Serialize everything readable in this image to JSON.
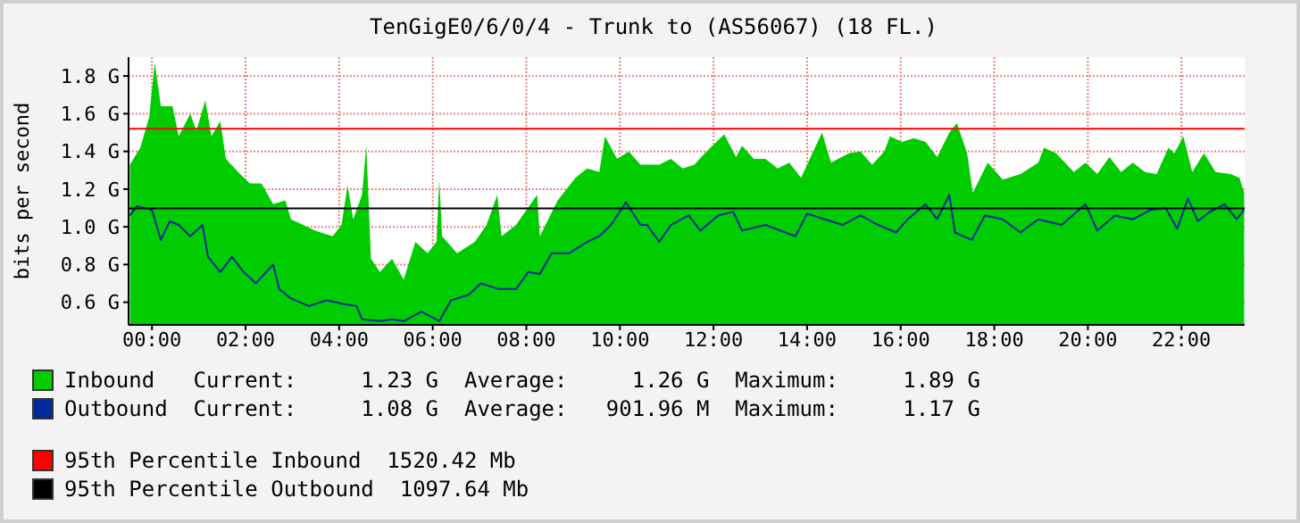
{
  "chart_data": {
    "type": "area",
    "title": "TenGigE0/6/0/4 - Trunk to (AS56067) (18 FL.)",
    "ylabel": "bits per second",
    "xlim": [
      -0.5,
      23.35
    ],
    "ylim": [
      0.48,
      1.9
    ],
    "xticks": [
      {
        "value": 0,
        "label": "00:00"
      },
      {
        "value": 2,
        "label": "02:00"
      },
      {
        "value": 4,
        "label": "04:00"
      },
      {
        "value": 6,
        "label": "06:00"
      },
      {
        "value": 8,
        "label": "08:00"
      },
      {
        "value": 10,
        "label": "10:00"
      },
      {
        "value": 12,
        "label": "12:00"
      },
      {
        "value": 14,
        "label": "14:00"
      },
      {
        "value": 16,
        "label": "16:00"
      },
      {
        "value": 18,
        "label": "18:00"
      },
      {
        "value": 20,
        "label": "20:00"
      },
      {
        "value": 22,
        "label": "22:00"
      }
    ],
    "yticks": [
      {
        "value": 0.6,
        "label": "0.6 G"
      },
      {
        "value": 0.8,
        "label": "0.8 G"
      },
      {
        "value": 1.0,
        "label": "1.0 G"
      },
      {
        "value": 1.2,
        "label": "1.2 G"
      },
      {
        "value": 1.4,
        "label": "1.4 G"
      },
      {
        "value": 1.6,
        "label": "1.6 G"
      },
      {
        "value": 1.8,
        "label": "1.8 G"
      }
    ],
    "grid": true,
    "legend": "bottom",
    "series": [
      {
        "name": "Inbound",
        "color": "#00cc00",
        "x": [
          -0.47,
          -0.25,
          -0.06,
          0.06,
          0.19,
          0.44,
          0.57,
          0.82,
          0.95,
          1.14,
          1.27,
          1.46,
          1.58,
          1.84,
          2.09,
          2.34,
          2.59,
          2.85,
          2.97,
          3.23,
          3.48,
          3.86,
          4.05,
          4.18,
          4.3,
          4.49,
          4.58,
          4.68,
          4.87,
          5.13,
          5.38,
          5.63,
          5.89,
          6.08,
          6.14,
          6.2,
          6.52,
          6.9,
          7.15,
          7.38,
          7.47,
          7.78,
          8.23,
          8.29,
          8.67,
          9.05,
          9.3,
          9.56,
          9.68,
          9.94,
          10.19,
          10.44,
          10.58,
          10.84,
          11.09,
          11.34,
          11.59,
          11.85,
          12.23,
          12.48,
          12.61,
          12.86,
          13.11,
          13.37,
          13.62,
          13.87,
          14.13,
          14.32,
          14.51,
          14.89,
          15.14,
          15.39,
          15.65,
          15.77,
          16.03,
          16.28,
          16.53,
          16.78,
          17.04,
          17.2,
          17.42,
          17.54,
          17.86,
          18.18,
          18.56,
          18.94,
          19.06,
          19.32,
          19.7,
          19.95,
          20.2,
          20.46,
          20.71,
          20.96,
          21.22,
          21.47,
          21.72,
          21.85,
          22.04,
          22.23,
          22.48,
          22.73,
          23.05,
          23.24,
          23.34
        ],
        "values": [
          1.33,
          1.42,
          1.58,
          1.87,
          1.64,
          1.64,
          1.48,
          1.6,
          1.51,
          1.67,
          1.48,
          1.56,
          1.36,
          1.29,
          1.23,
          1.23,
          1.12,
          1.14,
          1.04,
          1.01,
          0.98,
          0.95,
          1.01,
          1.22,
          1.04,
          1.17,
          1.43,
          0.83,
          0.76,
          0.83,
          0.72,
          0.92,
          0.86,
          0.92,
          1.25,
          0.95,
          0.86,
          0.92,
          1.01,
          1.17,
          0.95,
          1.01,
          1.17,
          0.95,
          1.14,
          1.26,
          1.31,
          1.29,
          1.48,
          1.36,
          1.4,
          1.33,
          1.33,
          1.33,
          1.36,
          1.31,
          1.33,
          1.4,
          1.49,
          1.37,
          1.43,
          1.36,
          1.36,
          1.31,
          1.34,
          1.26,
          1.4,
          1.5,
          1.34,
          1.39,
          1.4,
          1.33,
          1.4,
          1.48,
          1.45,
          1.47,
          1.45,
          1.37,
          1.5,
          1.55,
          1.39,
          1.18,
          1.34,
          1.25,
          1.28,
          1.34,
          1.42,
          1.39,
          1.29,
          1.34,
          1.28,
          1.37,
          1.29,
          1.34,
          1.29,
          1.28,
          1.42,
          1.39,
          1.48,
          1.29,
          1.39,
          1.29,
          1.28,
          1.26,
          1.18
        ]
      },
      {
        "name": "Outbound",
        "type": "line",
        "color": "#002a97",
        "x": [
          -0.47,
          -0.32,
          0,
          0.19,
          0.38,
          0.57,
          0.82,
          1.08,
          1.2,
          1.46,
          1.71,
          1.96,
          2.22,
          2.59,
          2.72,
          2.97,
          3.35,
          3.73,
          4.11,
          4.37,
          4.49,
          4.87,
          5.13,
          5.38,
          5.76,
          6.14,
          6.39,
          6.77,
          7.03,
          7.41,
          7.78,
          8.04,
          8.29,
          8.54,
          8.92,
          9.3,
          9.56,
          9.81,
          10.13,
          10.44,
          10.58,
          10.84,
          11.09,
          11.47,
          11.72,
          12.1,
          12.42,
          12.61,
          13.11,
          13.75,
          14.0,
          14.38,
          14.76,
          15.14,
          15.52,
          15.9,
          16.15,
          16.53,
          16.78,
          17.04,
          17.16,
          17.52,
          17.8,
          18.18,
          18.56,
          18.94,
          19.44,
          19.95,
          20.2,
          20.58,
          20.96,
          21.34,
          21.66,
          21.91,
          22.14,
          22.35,
          22.61,
          22.92,
          23.18,
          23.34
        ],
        "values": [
          1.06,
          1.11,
          1.09,
          0.93,
          1.03,
          1.01,
          0.95,
          1.01,
          0.84,
          0.76,
          0.84,
          0.76,
          0.7,
          0.8,
          0.67,
          0.62,
          0.58,
          0.61,
          0.59,
          0.58,
          0.51,
          0.5,
          0.51,
          0.5,
          0.55,
          0.5,
          0.61,
          0.64,
          0.7,
          0.67,
          0.67,
          0.76,
          0.75,
          0.86,
          0.86,
          0.92,
          0.95,
          1.01,
          1.13,
          1.01,
          1.01,
          0.92,
          1.01,
          1.06,
          0.98,
          1.06,
          1.08,
          0.98,
          1.01,
          0.95,
          1.07,
          1.04,
          1.01,
          1.06,
          1.01,
          0.97,
          1.04,
          1.12,
          1.04,
          1.17,
          0.97,
          0.93,
          1.06,
          1.04,
          0.97,
          1.04,
          1.01,
          1.12,
          0.98,
          1.06,
          1.04,
          1.09,
          1.1,
          0.99,
          1.15,
          1.03,
          1.08,
          1.12,
          1.04,
          1.09
        ]
      }
    ],
    "ref_lines": [
      {
        "axis": "y",
        "value": 1.52042,
        "label": "95th Percentile Inbound  1520.42 Mb",
        "color": "#ff0000"
      },
      {
        "axis": "y",
        "value": 1.09764,
        "label": "95th Percentile Outbound  1097.64 Mb",
        "color": "#000000"
      }
    ],
    "annotations": [
      "Current:     1.23 G  Average:     1.26 G  Maximum:     1.89 G",
      "Current:     1.08 G  Average:   901.96 M  Maximum:     1.17 G"
    ]
  }
}
